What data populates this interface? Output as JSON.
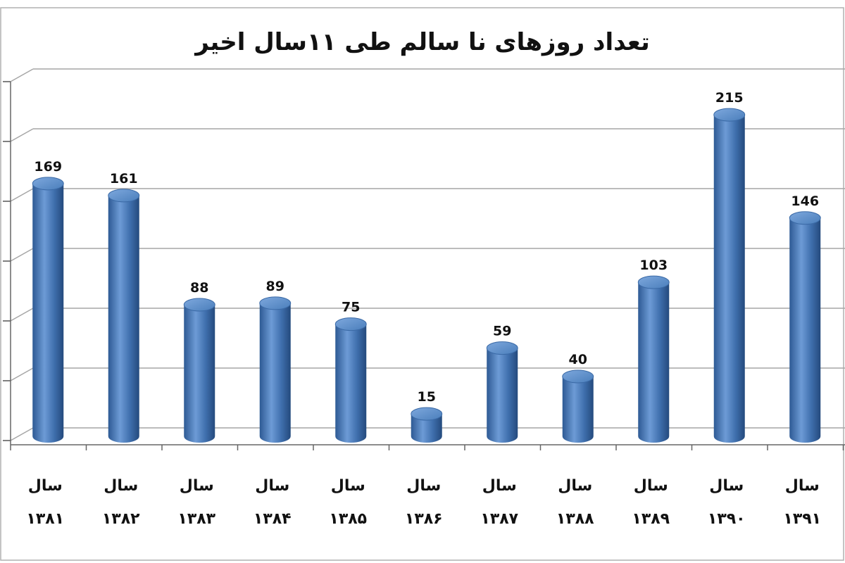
{
  "chart_data": {
    "type": "bar",
    "title": "تعداد روزهای نا سالم طی ۱۱سال اخیر",
    "categories": [
      "سال ۱۳۸۱",
      "سال ۱۳۸۲",
      "سال ۱۳۸۳",
      "سال ۱۳۸۴",
      "سال ۱۳۸۵",
      "سال ۱۳۸۶",
      "سال ۱۳۸۷",
      "سال ۱۳۸۸",
      "سال ۱۳۸۹",
      "سال ۱۳۹۰",
      "سال ۱۳۹۱"
    ],
    "category_lines": [
      [
        "سال",
        "۱۳۸۱"
      ],
      [
        "سال",
        "۱۳۸۲"
      ],
      [
        "سال",
        "۱۳۸۳"
      ],
      [
        "سال",
        "۱۳۸۴"
      ],
      [
        "سال",
        "۱۳۸۵"
      ],
      [
        "سال",
        "۱۳۸۶"
      ],
      [
        "سال",
        "۱۳۸۷"
      ],
      [
        "سال",
        "۱۳۸۸"
      ],
      [
        "سال",
        "۱۳۸۹"
      ],
      [
        "سال",
        "۱۳۹۰"
      ],
      [
        "سال",
        "۱۳۹۱"
      ]
    ],
    "values": [
      169,
      161,
      88,
      89,
      75,
      15,
      59,
      40,
      103,
      215,
      146
    ],
    "ylim": [
      0,
      240
    ],
    "grid": true,
    "bar_shape": "3d-cylinder",
    "bar_color": "#4a7ebb",
    "legend": "none"
  }
}
